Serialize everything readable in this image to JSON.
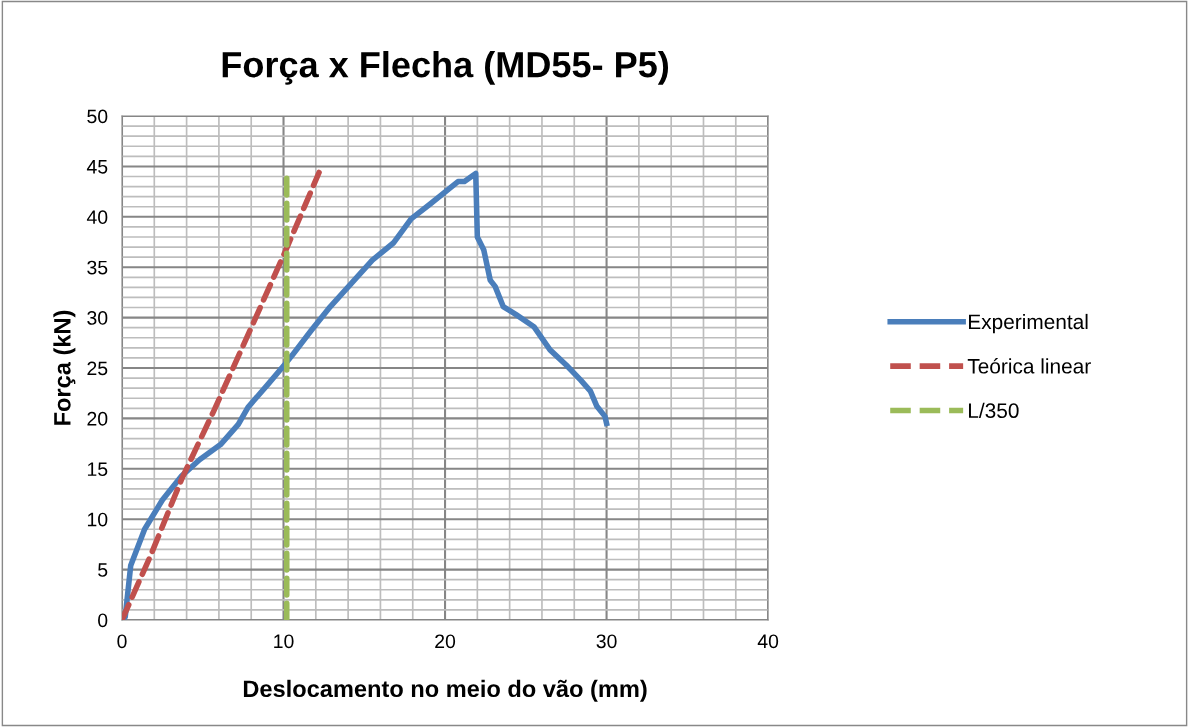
{
  "chart_data": {
    "type": "line",
    "title": "Força x Flecha (MD55- P5)",
    "xlabel": "Deslocamento no meio do vão (mm)",
    "ylabel": "Força (kN)",
    "xlim": [
      0,
      40
    ],
    "ylim": [
      0,
      50
    ],
    "xticks": [
      0,
      {
        "value": 2,
        "label": null
      },
      {
        "value": 4,
        "label": null
      },
      {
        "value": 6,
        "label": null
      },
      {
        "value": 8,
        "label": null
      },
      10,
      {
        "value": 12,
        "label": null
      },
      {
        "value": 14,
        "label": null
      },
      {
        "value": 16,
        "label": null
      },
      {
        "value": 18,
        "label": null
      },
      20,
      {
        "value": 22,
        "label": null
      },
      {
        "value": 24,
        "label": null
      },
      {
        "value": 26,
        "label": null
      },
      {
        "value": 28,
        "label": null
      },
      30,
      {
        "value": 32,
        "label": null
      },
      {
        "value": 34,
        "label": null
      },
      {
        "value": 36,
        "label": null
      },
      {
        "value": 38,
        "label": null
      },
      40
    ],
    "yticks": [
      0,
      {
        "value": 1,
        "label": null
      },
      {
        "value": 2,
        "label": null
      },
      {
        "value": 3,
        "label": null
      },
      {
        "value": 4,
        "label": null
      },
      5,
      {
        "value": 6,
        "label": null
      },
      {
        "value": 7,
        "label": null
      },
      {
        "value": 8,
        "label": null
      },
      {
        "value": 9,
        "label": null
      },
      10,
      {
        "value": 11,
        "label": null
      },
      {
        "value": 12,
        "label": null
      },
      {
        "value": 13,
        "label": null
      },
      {
        "value": 14,
        "label": null
      },
      15,
      {
        "value": 16,
        "label": null
      },
      {
        "value": 17,
        "label": null
      },
      {
        "value": 18,
        "label": null
      },
      {
        "value": 19,
        "label": null
      },
      20,
      {
        "value": 21,
        "label": null
      },
      {
        "value": 22,
        "label": null
      },
      {
        "value": 23,
        "label": null
      },
      {
        "value": 24,
        "label": null
      },
      25,
      {
        "value": 26,
        "label": null
      },
      {
        "value": 27,
        "label": null
      },
      {
        "value": 28,
        "label": null
      },
      {
        "value": 29,
        "label": null
      },
      30,
      {
        "value": 31,
        "label": null
      },
      {
        "value": 32,
        "label": null
      },
      {
        "value": 33,
        "label": null
      },
      {
        "value": 34,
        "label": null
      },
      35,
      {
        "value": 36,
        "label": null
      },
      {
        "value": 37,
        "label": null
      },
      {
        "value": 38,
        "label": null
      },
      {
        "value": 39,
        "label": null
      },
      40,
      {
        "value": 41,
        "label": null
      },
      {
        "value": 42,
        "label": null
      },
      {
        "value": 43,
        "label": null
      },
      {
        "value": 44,
        "label": null
      },
      45,
      {
        "value": 46,
        "label": null
      },
      {
        "value": 47,
        "label": null
      },
      {
        "value": 48,
        "label": null
      },
      {
        "value": 49,
        "label": null
      },
      50
    ],
    "grid": true,
    "legend": "right",
    "marker": "none",
    "series": [
      {
        "name": "Experimental",
        "color": "#4a7ebb",
        "line_style": "solid",
        "x": [
          0,
          0.2,
          0.54,
          1.4,
          2.5,
          3.7,
          4.8,
          6.1,
          7.2,
          7.8,
          9.1,
          10.1,
          10.6,
          11.7,
          12.9,
          14.2,
          15.5,
          16.8,
          17.9,
          19.1,
          20.8,
          21.2,
          21.9,
          22.0,
          22.4,
          22.8,
          23.1,
          23.6,
          24.4,
          25.5,
          26.5,
          27.5,
          28.4,
          29.0,
          29.4,
          29.9,
          30.0
        ],
        "values": [
          0,
          0.3,
          5.4,
          9.0,
          11.9,
          14.3,
          15.9,
          17.4,
          19.4,
          21.1,
          23.5,
          25.4,
          26.4,
          28.7,
          31.1,
          33.4,
          35.7,
          37.4,
          39.8,
          41.3,
          43.5,
          43.5,
          44.3,
          38.0,
          36.7,
          33.7,
          33.1,
          31.1,
          30.3,
          29.1,
          26.8,
          25.3,
          23.8,
          22.7,
          21.2,
          20.2,
          19.5
        ]
      },
      {
        "name": "Teórica linear",
        "color": "#c0504d",
        "line_style": "dashed",
        "x": [
          0,
          1.8,
          3.7,
          5.7,
          8.0,
          10.2,
          12.2
        ],
        "values": [
          0,
          6.5,
          14.0,
          20.8,
          29.0,
          36.9,
          44.4
        ]
      },
      {
        "name": "L/350",
        "color": "#9bbb59",
        "line_style": "dashed",
        "x": [
          10.2,
          10.2
        ],
        "values": [
          0,
          44.3
        ]
      }
    ]
  }
}
